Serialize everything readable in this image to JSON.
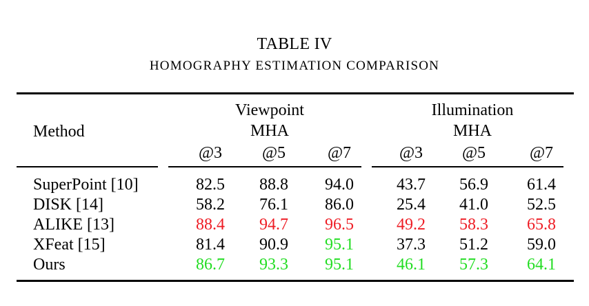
{
  "table": {
    "label": "TABLE IV",
    "caption": "HOMOGRAPHY ESTIMATION COMPARISON",
    "method_header": "Method",
    "groups": [
      {
        "name": "Viewpoint",
        "metric": "MHA"
      },
      {
        "name": "Illumination",
        "metric": "MHA"
      }
    ],
    "thresholds": [
      "@3",
      "@5",
      "@7",
      "@3",
      "@5",
      "@7"
    ],
    "rows": [
      {
        "method": "SuperPoint [10]",
        "values": [
          "82.5",
          "88.8",
          "94.0",
          "43.7",
          "56.9",
          "61.4"
        ]
      },
      {
        "method": "DISK [14]",
        "values": [
          "58.2",
          "76.1",
          "86.0",
          "25.4",
          "41.0",
          "52.5"
        ]
      },
      {
        "method": "ALIKE [13]",
        "values": [
          "88.4",
          "94.7",
          "96.5",
          "49.2",
          "58.3",
          "65.8"
        ]
      },
      {
        "method": "XFeat [15]",
        "values": [
          "81.4",
          "90.9",
          "95.1",
          "37.3",
          "51.2",
          "59.0"
        ]
      },
      {
        "method": "Ours",
        "values": [
          "86.7",
          "93.3",
          "95.1",
          "46.1",
          "57.3",
          "64.1"
        ]
      }
    ],
    "highlight": [
      [
        "black",
        "black",
        "black",
        "black",
        "black",
        "black"
      ],
      [
        "black",
        "black",
        "black",
        "black",
        "black",
        "black"
      ],
      [
        "red",
        "red",
        "red",
        "red",
        "red",
        "red"
      ],
      [
        "black",
        "black",
        "green",
        "black",
        "black",
        "black"
      ],
      [
        "green",
        "green",
        "green",
        "green",
        "green",
        "green"
      ]
    ],
    "colors": {
      "black": "#000000",
      "red": "#ee1c24",
      "green": "#22dd22"
    }
  }
}
